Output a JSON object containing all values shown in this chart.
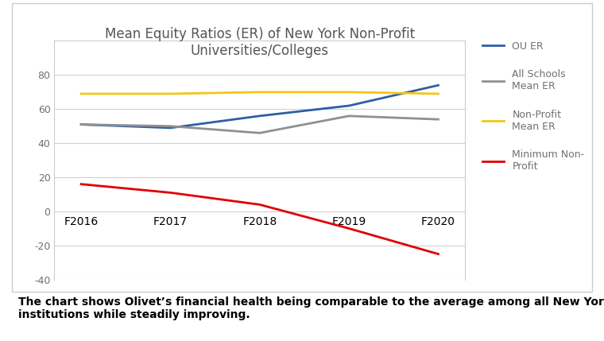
{
  "title": "Mean Equity Ratios (ER) of New York Non-Profit\nUniversities/Colleges",
  "categories": [
    "F2016",
    "F2017",
    "F2018",
    "F2019",
    "F2020"
  ],
  "ou_er": [
    51,
    49,
    56,
    62,
    74
  ],
  "all_schools_mean_er": [
    51,
    50,
    46,
    56,
    54
  ],
  "nonprofit_mean_er": [
    69,
    69,
    70,
    70,
    69
  ],
  "minimum_nonprofit": [
    16,
    11,
    4,
    -10,
    -25
  ],
  "ou_er_color": "#2e5fa3",
  "all_schools_color": "#909090",
  "nonprofit_color": "#f5c518",
  "minimum_color": "#e00000",
  "ylim": [
    -40,
    100
  ],
  "yticks": [
    -40,
    -20,
    0,
    20,
    40,
    60,
    80
  ],
  "caption": "The chart shows Olivet’s financial health being comparable to the average among all New York\ninstitutions while steadily improving.",
  "legend_labels": [
    "OU ER",
    "All Schools\nMean ER",
    "Non-Profit\nMean ER",
    "Minimum Non-\nProfit"
  ],
  "background_color": "#ffffff",
  "grid_color": "#d0d0d0",
  "tick_label_color": "#707070",
  "title_color": "#555555"
}
